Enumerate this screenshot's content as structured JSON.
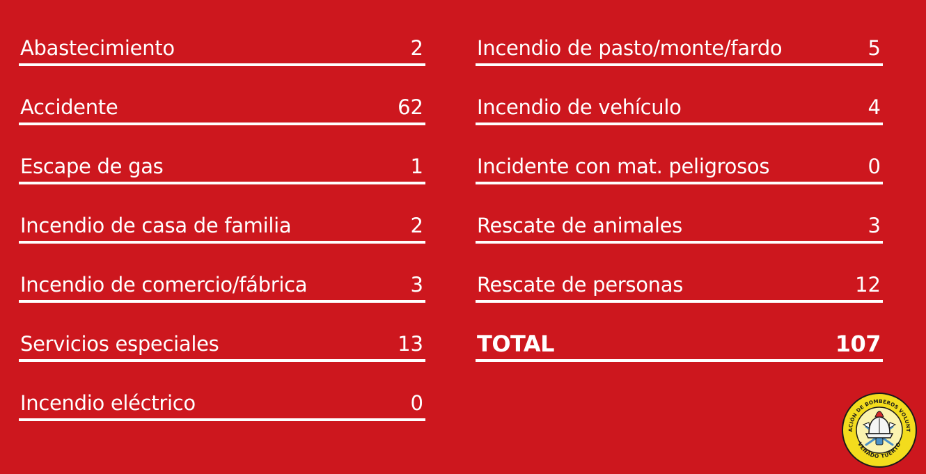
{
  "left_items": [
    {
      "label": "Abastecimiento",
      "value": "2"
    },
    {
      "label": "Accidente",
      "value": "62"
    },
    {
      "label": "Escape de gas",
      "value": "1"
    },
    {
      "label": "Incendio de casa de familia",
      "value": "2"
    },
    {
      "label": "Incendio de comercio/fábrica",
      "value": "3"
    },
    {
      "label": "Servicios especiales",
      "value": "13"
    },
    {
      "label": "Incendio eléctrico",
      "value": "0"
    }
  ],
  "right_items": [
    {
      "label": "Incendio de pasto/monte/fardo",
      "value": "5"
    },
    {
      "label": "Incendio de vehículo",
      "value": "4"
    },
    {
      "label": "Incidente con mat. peligrosos",
      "value": "0"
    },
    {
      "label": "Rescate de animales",
      "value": "3"
    },
    {
      "label": "Rescate de personas",
      "value": "12"
    }
  ],
  "total": {
    "label": "TOTAL",
    "value": "107"
  },
  "logo": {
    "top_text": "ASOCIACIÓN DE BOMBEROS VOLUNTARIOS",
    "bottom_text": "VENADO TUERTO",
    "colors": {
      "ring": "#f3dc1d",
      "outline": "#1a1a1a",
      "helmet": "#d32a2a",
      "tools": "#4a90c8"
    }
  },
  "colors": {
    "background": "#cd171e",
    "text": "#ffffff"
  }
}
